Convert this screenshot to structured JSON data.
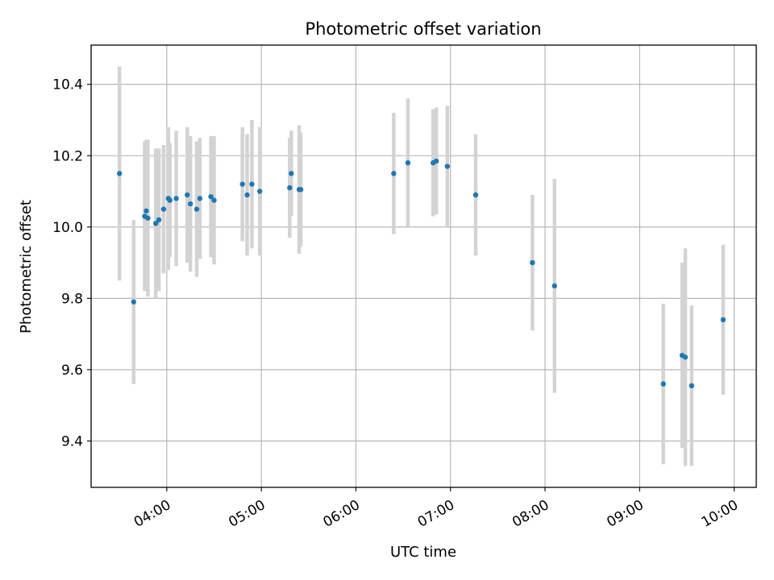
{
  "chart_data": {
    "type": "scatter",
    "title": "Photometric offset variation",
    "xlabel": "UTC time",
    "ylabel": "Photometric offset",
    "x_ticks": [
      "04:00",
      "05:00",
      "06:00",
      "07:00",
      "08:00",
      "09:00",
      "10:00"
    ],
    "y_ticks": [
      "9.4",
      "9.6",
      "9.8",
      "10.0",
      "10.2",
      "10.4"
    ],
    "xlim": [
      "03:12",
      "10:14"
    ],
    "ylim": [
      9.27,
      10.51
    ],
    "grid": true,
    "marker_color": "#1f77b4",
    "errorbar_color": "#d3d3d3",
    "points": [
      {
        "x": "03:30",
        "y": 10.15,
        "yerr": 0.3
      },
      {
        "x": "03:39",
        "y": 9.79,
        "yerr": 0.23
      },
      {
        "x": "03:46",
        "y": 10.03,
        "yerr": 0.21
      },
      {
        "x": "03:47",
        "y": 10.045,
        "yerr": 0.2
      },
      {
        "x": "03:48",
        "y": 10.025,
        "yerr": 0.22
      },
      {
        "x": "03:53",
        "y": 10.01,
        "yerr": 0.21
      },
      {
        "x": "03:55",
        "y": 10.02,
        "yerr": 0.2
      },
      {
        "x": "03:58",
        "y": 10.05,
        "yerr": 0.18
      },
      {
        "x": "04:01",
        "y": 10.08,
        "yerr": 0.2
      },
      {
        "x": "04:02",
        "y": 10.075,
        "yerr": 0.16
      },
      {
        "x": "04:06",
        "y": 10.08,
        "yerr": 0.19
      },
      {
        "x": "04:13",
        "y": 10.09,
        "yerr": 0.19
      },
      {
        "x": "04:15",
        "y": 10.065,
        "yerr": 0.19
      },
      {
        "x": "04:19",
        "y": 10.05,
        "yerr": 0.19
      },
      {
        "x": "04:21",
        "y": 10.08,
        "yerr": 0.17
      },
      {
        "x": "04:28",
        "y": 10.085,
        "yerr": 0.17
      },
      {
        "x": "04:30",
        "y": 10.075,
        "yerr": 0.18
      },
      {
        "x": "04:48",
        "y": 10.12,
        "yerr": 0.16
      },
      {
        "x": "04:51",
        "y": 10.09,
        "yerr": 0.17
      },
      {
        "x": "04:54",
        "y": 10.12,
        "yerr": 0.18
      },
      {
        "x": "04:59",
        "y": 10.1,
        "yerr": 0.18
      },
      {
        "x": "05:18",
        "y": 10.11,
        "yerr": 0.14
      },
      {
        "x": "05:19",
        "y": 10.15,
        "yerr": 0.12
      },
      {
        "x": "05:24",
        "y": 10.105,
        "yerr": 0.18
      },
      {
        "x": "05:25",
        "y": 10.105,
        "yerr": 0.16
      },
      {
        "x": "06:24",
        "y": 10.15,
        "yerr": 0.17
      },
      {
        "x": "06:33",
        "y": 10.18,
        "yerr": 0.18
      },
      {
        "x": "06:49",
        "y": 10.18,
        "yerr": 0.15
      },
      {
        "x": "06:51",
        "y": 10.185,
        "yerr": 0.15
      },
      {
        "x": "06:58",
        "y": 10.17,
        "yerr": 0.17
      },
      {
        "x": "07:16",
        "y": 10.09,
        "yerr": 0.17
      },
      {
        "x": "07:52",
        "y": 9.9,
        "yerr": 0.19
      },
      {
        "x": "08:06",
        "y": 9.835,
        "yerr": 0.3
      },
      {
        "x": "09:15",
        "y": 9.56,
        "yerr": 0.225
      },
      {
        "x": "09:27",
        "y": 9.64,
        "yerr": 0.26
      },
      {
        "x": "09:29",
        "y": 9.635,
        "yerr": 0.305
      },
      {
        "x": "09:33",
        "y": 9.555,
        "yerr": 0.225
      },
      {
        "x": "09:53",
        "y": 9.74,
        "yerr": 0.21
      }
    ]
  }
}
